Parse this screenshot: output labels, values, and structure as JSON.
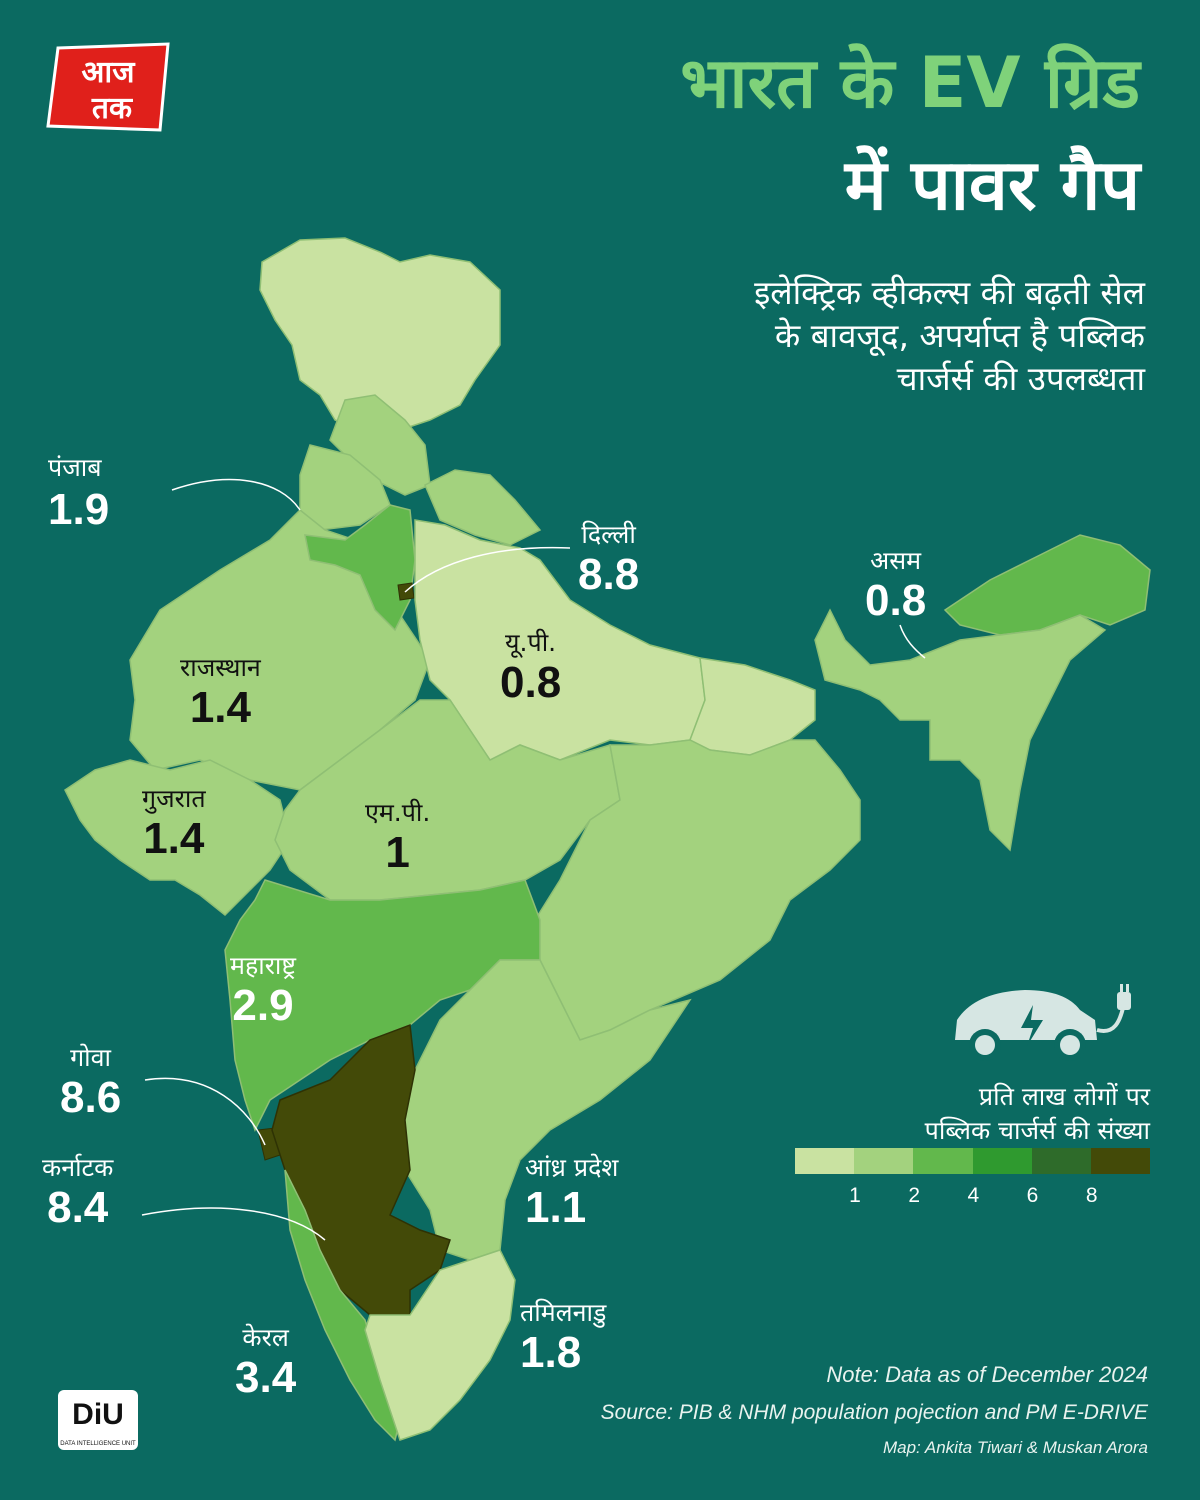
{
  "brand": {
    "logo_text_top": "आज",
    "logo_text_bottom": "तक",
    "diu_text": "DiU",
    "diu_caption": "DATA INTELLIGENCE UNIT"
  },
  "title": {
    "line1": "भारत के EV ग्रिड",
    "line2": "में पावर गैप"
  },
  "subtitle": {
    "line1": "इलेक्ट्रिक व्हीकल्स की बढ़ती सेल",
    "line2": "के बावजूद, अपर्याप्त है पब्लिक",
    "line3": "चार्जर्स की उपलब्धता"
  },
  "states": {
    "punjab": {
      "name": "पंजाब",
      "value": "1.9"
    },
    "delhi": {
      "name": "दिल्ली",
      "value": "8.8"
    },
    "assam": {
      "name": "असम",
      "value": "0.8"
    },
    "rajasthan": {
      "name": "राजस्थान",
      "value": "1.4"
    },
    "up": {
      "name": "यू.पी.",
      "value": "0.8"
    },
    "gujarat": {
      "name": "गुजरात",
      "value": "1.4"
    },
    "mp": {
      "name": "एम.पी.",
      "value": "1"
    },
    "maharashtra": {
      "name": "महाराष्ट्र",
      "value": "2.9"
    },
    "goa": {
      "name": "गोवा",
      "value": "8.6"
    },
    "karnataka": {
      "name": "कर्नाटक",
      "value": "8.4"
    },
    "andhra": {
      "name": "आंध्र प्रदेश",
      "value": "1.1"
    },
    "tamilnadu": {
      "name": "तमिलनाडु",
      "value": "1.8"
    },
    "kerala": {
      "name": "केरल",
      "value": "3.4"
    }
  },
  "legend": {
    "title_line1": "प्रति लाख लोगों पर",
    "title_line2": "पब्लिक चार्जर्स की संख्या",
    "colors": [
      "#c9e2a1",
      "#a3d27e",
      "#62b84c",
      "#2f9a2f",
      "#2e6b2a",
      "#434a08"
    ],
    "ticks": [
      "1",
      "2",
      "4",
      "6",
      "8"
    ]
  },
  "footer": {
    "note": "Note: Data as of December 2024",
    "source": "Source: PIB & NHM population pojection and PM E-DRIVE",
    "credit": "Map: Ankita Tiwari & Muskan Arora"
  },
  "colors": {
    "background": "#0b6a61",
    "title_accent": "#7fd27a"
  }
}
